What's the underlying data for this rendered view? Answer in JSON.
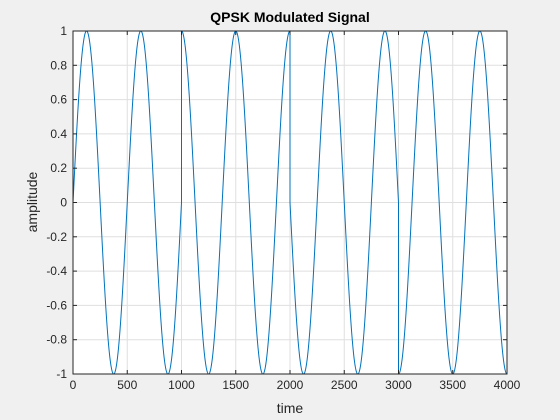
{
  "chart_data": {
    "type": "line",
    "title": "QPSK Modulated Signal",
    "xlabel": "time",
    "ylabel": "amplitude",
    "xlim": [
      0,
      4000
    ],
    "ylim": [
      -1,
      1
    ],
    "x_ticks": [
      0,
      500,
      1000,
      1500,
      2000,
      2500,
      3000,
      3500,
      4000
    ],
    "y_ticks": [
      1,
      0.8,
      0.6,
      0.4,
      0.2,
      0,
      -0.2,
      -0.4,
      -0.6,
      -0.8,
      -1
    ],
    "x_tick_labels": [
      "0",
      "500",
      "1000",
      "1500",
      "2000",
      "2500",
      "3000",
      "3500",
      "4000"
    ],
    "y_tick_labels": [
      "1",
      "0.8",
      "0.6",
      "0.4",
      "0.2",
      "0",
      "-0.2",
      "-0.4",
      "-0.6",
      "-0.8",
      "-1"
    ],
    "grid": true,
    "series": [
      {
        "period": 500,
        "amplitude": 1,
        "segments": [
          {
            "x_start": 0,
            "x_end": 1000,
            "phase_deg": 0
          },
          {
            "x_start": 1000,
            "x_end": 2000,
            "phase_deg": 90
          },
          {
            "x_start": 2000,
            "x_end": 3000,
            "phase_deg": 180
          },
          {
            "x_start": 3000,
            "x_end": 4000,
            "phase_deg": 270
          }
        ],
        "color": "#0072bd"
      }
    ]
  },
  "colors": {
    "figure_background": "#f0f0f0",
    "axes_background": "#ffffff",
    "grid": "#dfdfdf",
    "axis": "#262626",
    "line": "#0072bd"
  }
}
